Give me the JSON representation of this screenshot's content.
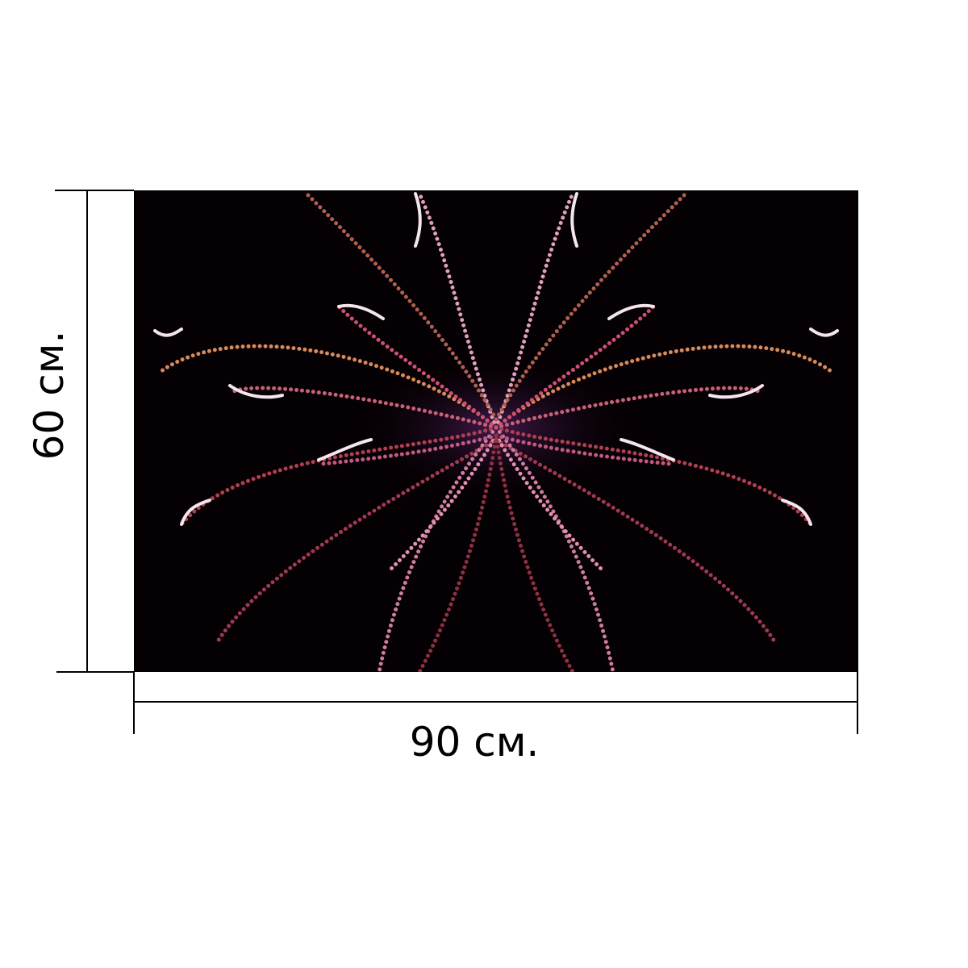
{
  "height_label": "60 см.",
  "width_label": "90 см."
}
